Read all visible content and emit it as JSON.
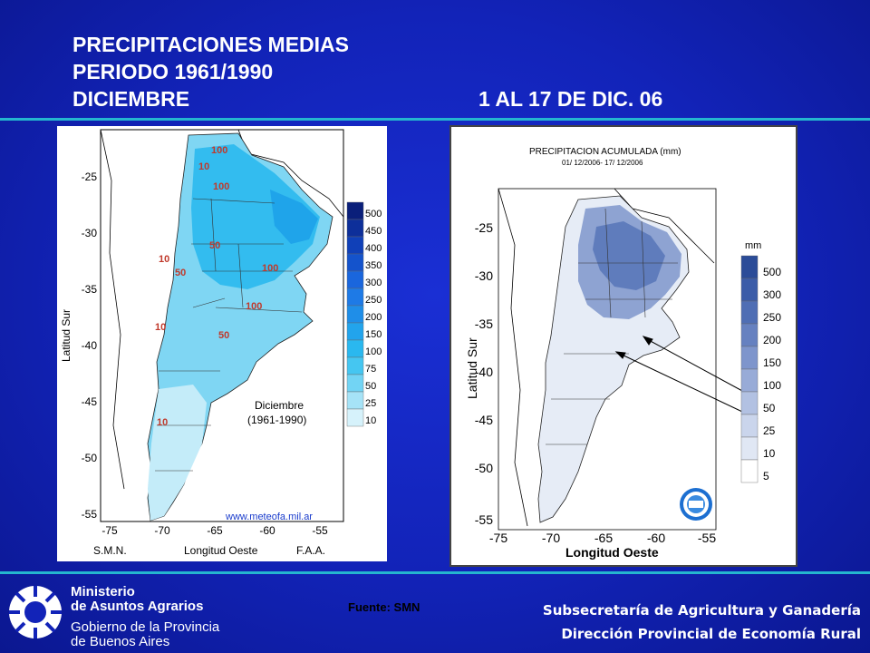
{
  "header": {
    "line1": "PRECIPITACIONES MEDIAS",
    "line2": "PERIODO 1961/1990",
    "line3": "DICIEMBRE",
    "right_title": "1 AL  17 DE DIC. 06"
  },
  "map_left": {
    "y_axis_label": "Latitud Sur",
    "x_axis_label": "Longitud Oeste",
    "bottom_left": "S.M.N.",
    "bottom_right": "F.A.A.",
    "x_ticks": [
      "-75",
      "-70",
      "-65",
      "-60",
      "-55"
    ],
    "y_ticks": [
      "-25",
      "-30",
      "-35",
      "-40",
      "-45",
      "-50",
      "-55"
    ],
    "legend": [
      "500",
      "450",
      "400",
      "350",
      "300",
      "250",
      "200",
      "150",
      "100",
      "75",
      "50",
      "25",
      "10"
    ],
    "legend_colors": [
      "#0a1f7a",
      "#0d2f9a",
      "#1040b8",
      "#1453cc",
      "#1a66dd",
      "#1e7ae6",
      "#1f8ee8",
      "#22a4ec",
      "#2ab8ef",
      "#45c6f1",
      "#72d4f4",
      "#a6e3f7",
      "#d6f2fb"
    ],
    "inset_title": "Diciembre",
    "inset_sub": "(1961-1990)",
    "url": "www.meteofa.mil.ar",
    "contour_labels": [
      "10",
      "100",
      "100",
      "10",
      "50",
      "50",
      "100",
      "100",
      "10",
      "50",
      "10"
    ]
  },
  "map_right": {
    "title": "PRECIPITACION ACUMULADA (mm)",
    "subtitle": "01/ 12/2006- 17/ 12/2006",
    "y_axis_label": "Latitud Sur",
    "x_axis_label": "Longitud Oeste",
    "x_ticks": [
      "-75",
      "-70",
      "-65",
      "-60",
      "-55"
    ],
    "y_ticks": [
      "-25",
      "-30",
      "-35",
      "-40",
      "-45",
      "-50",
      "-55"
    ],
    "legend_unit": "mm",
    "legend": [
      "500",
      "300",
      "250",
      "200",
      "150",
      "100",
      "50",
      "25",
      "10",
      "5"
    ],
    "legend_colors": [
      "#2b4c98",
      "#3b5ca8",
      "#4f6eb4",
      "#6681c0",
      "#7e95cc",
      "#98abd7",
      "#b2c1e2",
      "#cad5ec",
      "#e0e7f4",
      "#ffffff"
    ]
  },
  "footer": {
    "source": "Fuente: SMN",
    "ministry_line1": "Ministerio",
    "ministry_line2": "de Asuntos Agrarios",
    "gov_line1": "Gobierno de la Provincia",
    "gov_line2": "de Buenos Aires",
    "sub1": "Subsecretaría de Agricultura y Ganadería",
    "sub2": "Dirección Provincial de Economía Rural"
  }
}
